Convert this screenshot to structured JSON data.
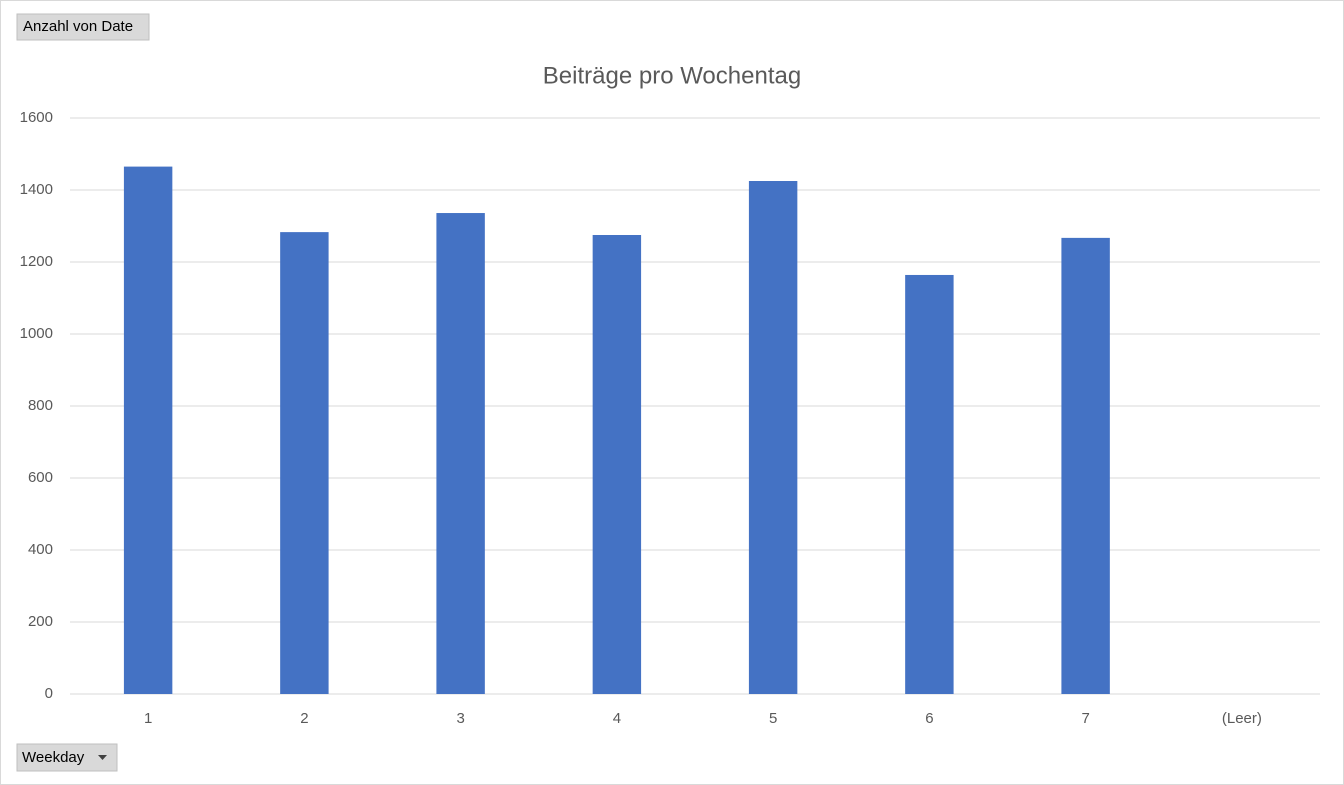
{
  "field_buttons": {
    "value_field": "Anzahl von Date",
    "axis_field": "Weekday"
  },
  "chart_data": {
    "type": "bar",
    "title": "Beiträge pro Wochentag",
    "categories": [
      "1",
      "2",
      "3",
      "4",
      "5",
      "6",
      "7",
      "(Leer)"
    ],
    "values": [
      1465,
      1283,
      1336,
      1275,
      1425,
      1164,
      1267,
      null
    ],
    "color": "#4472c4",
    "ylim": [
      0,
      1600
    ],
    "yticks": [
      0,
      200,
      400,
      600,
      800,
      1000,
      1200,
      1400,
      1600
    ],
    "grid": true
  }
}
